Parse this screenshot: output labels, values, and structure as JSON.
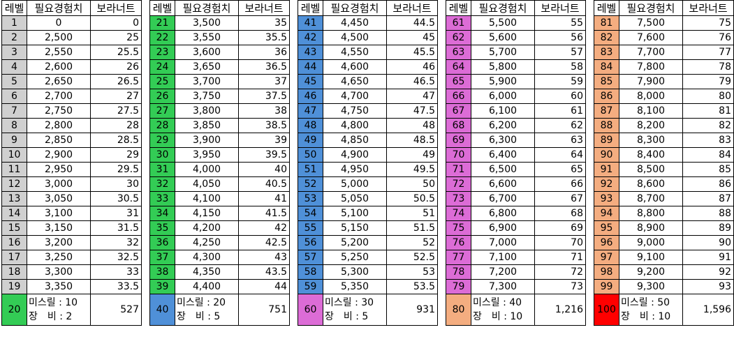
{
  "headers": [
    "레벨",
    "필요경험치",
    "보라너트"
  ],
  "colors": {
    "grey": "#d0d0d0",
    "green": "#33cc55",
    "blue": "#4f90d8",
    "magenta": "#dc6cd6",
    "orange": "#f4ad80",
    "red": "#ff0000"
  },
  "blocks": [
    {
      "color": "#d0d0d0",
      "rows": [
        [
          "1",
          "0",
          "0"
        ],
        [
          "2",
          "2,500",
          "25"
        ],
        [
          "3",
          "2,550",
          "25.5"
        ],
        [
          "4",
          "2,600",
          "26"
        ],
        [
          "5",
          "2,650",
          "26.5"
        ],
        [
          "6",
          "2,700",
          "27"
        ],
        [
          "7",
          "2,750",
          "27.5"
        ],
        [
          "8",
          "2,800",
          "28"
        ],
        [
          "9",
          "2,850",
          "28.5"
        ],
        [
          "10",
          "2,900",
          "29"
        ],
        [
          "11",
          "2,950",
          "29.5"
        ],
        [
          "12",
          "3,000",
          "30"
        ],
        [
          "13",
          "3,050",
          "30.5"
        ],
        [
          "14",
          "3,100",
          "31"
        ],
        [
          "15",
          "3,150",
          "31.5"
        ],
        [
          "16",
          "3,200",
          "32"
        ],
        [
          "17",
          "3,250",
          "32.5"
        ],
        [
          "18",
          "3,300",
          "33"
        ],
        [
          "19",
          "3,350",
          "33.5"
        ]
      ],
      "footer": {
        "level": "20",
        "level_color": "#33cc55",
        "line1": "미스릴 : 10",
        "line2": "장　비 : 2",
        "total": "527"
      }
    },
    {
      "color": "#33cc55",
      "rows": [
        [
          "21",
          "3,500",
          "35"
        ],
        [
          "22",
          "3,550",
          "35.5"
        ],
        [
          "23",
          "3,600",
          "36"
        ],
        [
          "24",
          "3,650",
          "36.5"
        ],
        [
          "25",
          "3,700",
          "37"
        ],
        [
          "26",
          "3,750",
          "37.5"
        ],
        [
          "27",
          "3,800",
          "38"
        ],
        [
          "28",
          "3,850",
          "38.5"
        ],
        [
          "29",
          "3,900",
          "39"
        ],
        [
          "30",
          "3,950",
          "39.5"
        ],
        [
          "31",
          "4,000",
          "40"
        ],
        [
          "32",
          "4,050",
          "40.5"
        ],
        [
          "33",
          "4,100",
          "41"
        ],
        [
          "34",
          "4,150",
          "41.5"
        ],
        [
          "35",
          "4,200",
          "42"
        ],
        [
          "36",
          "4,250",
          "42.5"
        ],
        [
          "37",
          "4,300",
          "43"
        ],
        [
          "38",
          "4,350",
          "43.5"
        ],
        [
          "39",
          "4,400",
          "44"
        ]
      ],
      "footer": {
        "level": "40",
        "level_color": "#4f90d8",
        "line1": "미스릴 : 20",
        "line2": "장　비 : 5",
        "total": "751"
      }
    },
    {
      "color": "#4f90d8",
      "rows": [
        [
          "41",
          "4,450",
          "44.5"
        ],
        [
          "42",
          "4,500",
          "45"
        ],
        [
          "43",
          "4,550",
          "45.5"
        ],
        [
          "44",
          "4,600",
          "46"
        ],
        [
          "45",
          "4,650",
          "46.5"
        ],
        [
          "46",
          "4,700",
          "47"
        ],
        [
          "47",
          "4,750",
          "47.5"
        ],
        [
          "48",
          "4,800",
          "48"
        ],
        [
          "49",
          "4,850",
          "48.5"
        ],
        [
          "50",
          "4,900",
          "49"
        ],
        [
          "51",
          "4,950",
          "49.5"
        ],
        [
          "52",
          "5,000",
          "50"
        ],
        [
          "53",
          "5,050",
          "50.5"
        ],
        [
          "54",
          "5,100",
          "51"
        ],
        [
          "55",
          "5,150",
          "51.5"
        ],
        [
          "56",
          "5,200",
          "52"
        ],
        [
          "57",
          "5,250",
          "52.5"
        ],
        [
          "58",
          "5,300",
          "53"
        ],
        [
          "59",
          "5,350",
          "53.5"
        ]
      ],
      "footer": {
        "level": "60",
        "level_color": "#dc6cd6",
        "line1": "미스릴 : 30",
        "line2": "장　비 : 5",
        "total": "931"
      }
    },
    {
      "color": "#dc6cd6",
      "rows": [
        [
          "61",
          "5,500",
          "55"
        ],
        [
          "62",
          "5,600",
          "56"
        ],
        [
          "63",
          "5,700",
          "57"
        ],
        [
          "64",
          "5,800",
          "58"
        ],
        [
          "65",
          "5,900",
          "59"
        ],
        [
          "66",
          "6,000",
          "60"
        ],
        [
          "67",
          "6,100",
          "61"
        ],
        [
          "68",
          "6,200",
          "62"
        ],
        [
          "69",
          "6,300",
          "63"
        ],
        [
          "70",
          "6,400",
          "64"
        ],
        [
          "71",
          "6,500",
          "65"
        ],
        [
          "72",
          "6,600",
          "66"
        ],
        [
          "73",
          "6,700",
          "67"
        ],
        [
          "74",
          "6,800",
          "68"
        ],
        [
          "75",
          "6,900",
          "69"
        ],
        [
          "76",
          "7,000",
          "70"
        ],
        [
          "77",
          "7,100",
          "71"
        ],
        [
          "78",
          "7,200",
          "72"
        ],
        [
          "79",
          "7,300",
          "73"
        ]
      ],
      "footer": {
        "level": "80",
        "level_color": "#f4ad80",
        "line1": "미스릴 : 40",
        "line2": "장　비 : 10",
        "total": "1,216"
      }
    },
    {
      "color": "#f4ad80",
      "rows": [
        [
          "81",
          "7,500",
          "75"
        ],
        [
          "82",
          "7,600",
          "76"
        ],
        [
          "83",
          "7,700",
          "77"
        ],
        [
          "84",
          "7,800",
          "78"
        ],
        [
          "85",
          "7,900",
          "79"
        ],
        [
          "86",
          "8,000",
          "80"
        ],
        [
          "87",
          "8,100",
          "81"
        ],
        [
          "88",
          "8,200",
          "82"
        ],
        [
          "89",
          "8,300",
          "83"
        ],
        [
          "90",
          "8,400",
          "84"
        ],
        [
          "91",
          "8,500",
          "85"
        ],
        [
          "92",
          "8,600",
          "86"
        ],
        [
          "93",
          "8,700",
          "87"
        ],
        [
          "94",
          "8,800",
          "88"
        ],
        [
          "95",
          "8,900",
          "89"
        ],
        [
          "96",
          "9,000",
          "90"
        ],
        [
          "97",
          "9,100",
          "91"
        ],
        [
          "98",
          "9,200",
          "92"
        ],
        [
          "99",
          "9,300",
          "93"
        ]
      ],
      "footer": {
        "level": "100",
        "level_color": "#ff0000",
        "line1": "미스릴 : 50",
        "line2": "장　비 : 10",
        "total": "1,596"
      }
    }
  ]
}
